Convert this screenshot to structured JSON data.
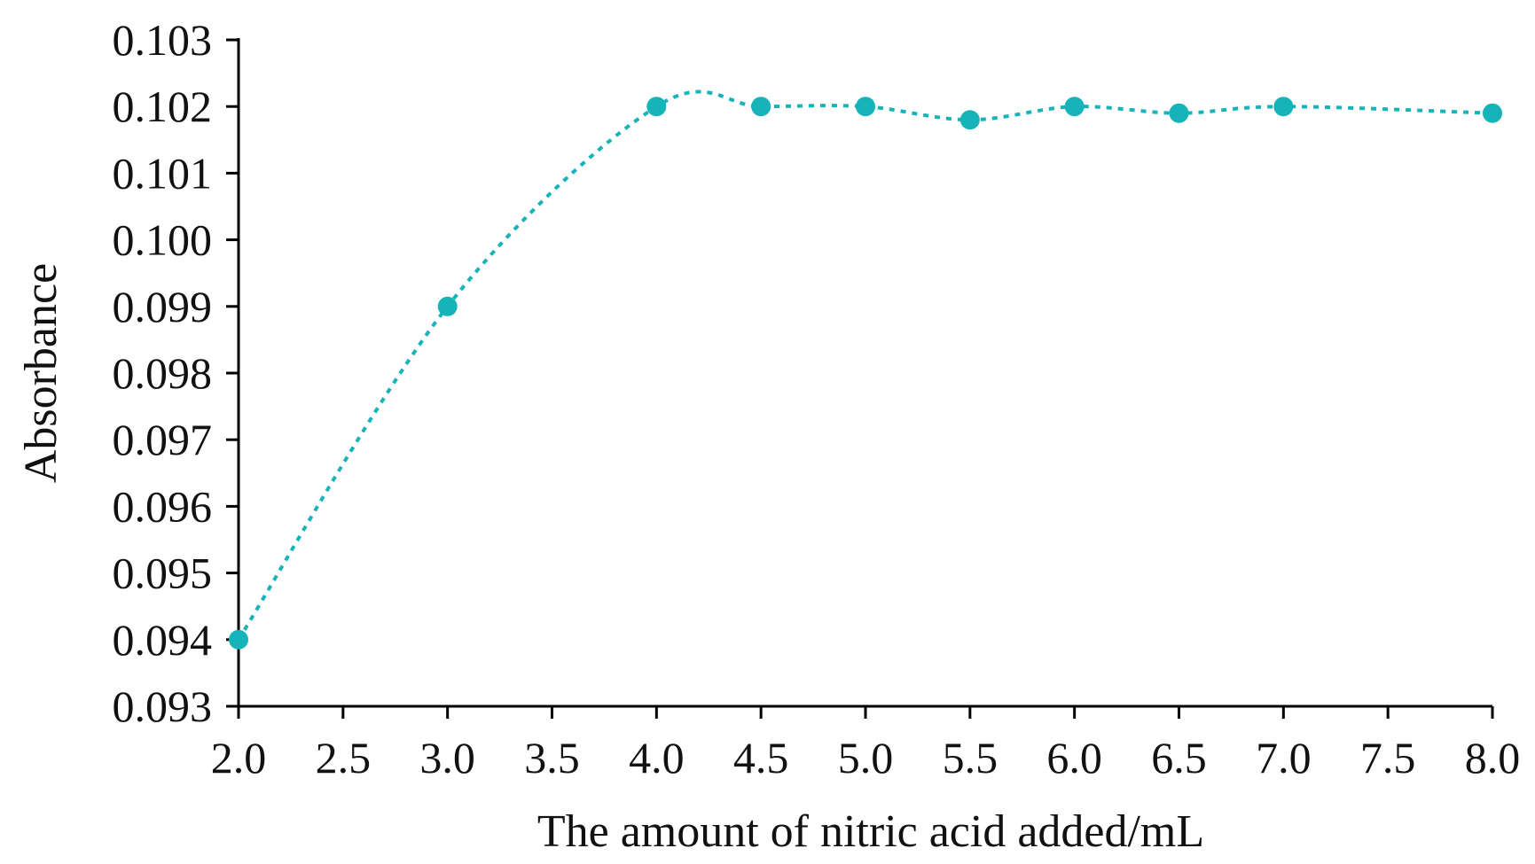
{
  "chart_data": {
    "type": "scatter",
    "title": "",
    "xlabel": "The amount of nitric acid added/mL",
    "ylabel": "Absorbance",
    "xlim": [
      2.0,
      8.0
    ],
    "ylim": [
      0.093,
      0.103
    ],
    "x_ticks": [
      "2.0",
      "2.5",
      "3.0",
      "3.5",
      "4.0",
      "4.5",
      "5.0",
      "5.5",
      "6.0",
      "6.5",
      "7.0",
      "7.5",
      "8.0"
    ],
    "y_ticks": [
      "0.093",
      "0.094",
      "0.095",
      "0.096",
      "0.097",
      "0.098",
      "0.099",
      "0.100",
      "0.101",
      "0.102",
      "0.103"
    ],
    "grid": false,
    "legend": "none",
    "trendline": "dotted smoothed curve",
    "color": "#16b3b8",
    "series": [
      {
        "x": [
          2.0,
          3.0,
          4.0,
          4.5,
          5.0,
          5.5,
          6.0,
          6.5,
          7.0,
          8.0
        ],
        "y": [
          0.094,
          0.099,
          0.102,
          0.102,
          0.102,
          0.1018,
          0.102,
          0.1019,
          0.102,
          0.1019
        ]
      }
    ]
  }
}
